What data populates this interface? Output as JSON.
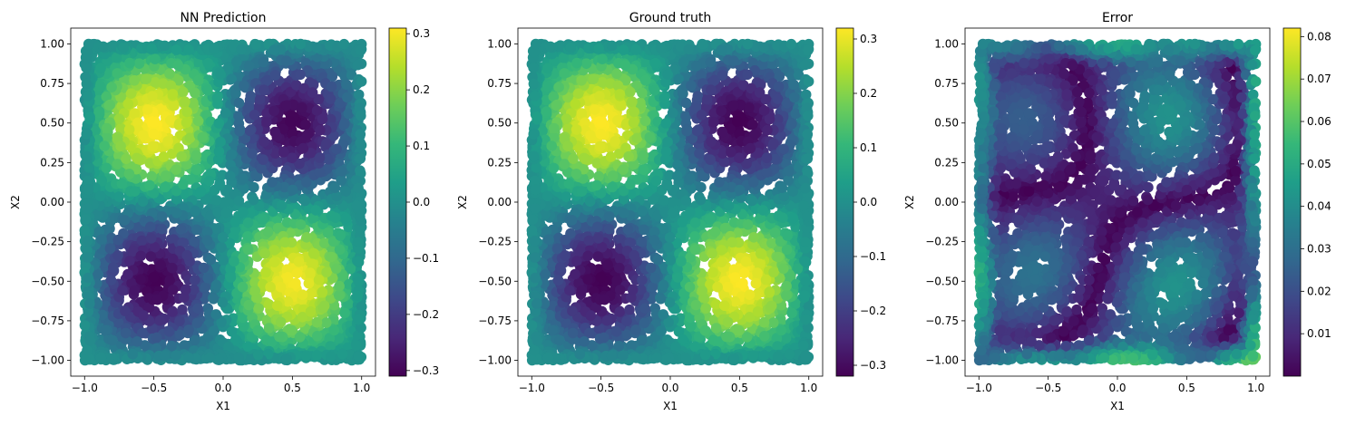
{
  "figure": {
    "background": "#ffffff"
  },
  "colormap": {
    "name": "viridis",
    "stops": [
      "#440154",
      "#482878",
      "#3e4989",
      "#31688e",
      "#26828e",
      "#1f9e89",
      "#35b779",
      "#6ece58",
      "#b5de2b",
      "#fde725"
    ]
  },
  "chart_data": [
    {
      "type": "scatter",
      "title": "NN Prediction",
      "xlabel": "X1",
      "ylabel": "X2",
      "xlim": [
        -1.1,
        1.1
      ],
      "ylim": [
        -1.1,
        1.1
      ],
      "xticks": [
        -1.0,
        -0.5,
        0.0,
        0.5,
        1.0
      ],
      "xtick_labels": [
        "−1.0",
        "−0.5",
        "0.0",
        "0.5",
        "1.0"
      ],
      "yticks": [
        -1.0,
        -0.75,
        -0.5,
        -0.25,
        0.0,
        0.25,
        0.5,
        0.75,
        1.0
      ],
      "ytick_labels": [
        "−1.00",
        "−0.75",
        "−0.50",
        "−0.25",
        "0.00",
        "0.25",
        "0.50",
        "0.75",
        "1.00"
      ],
      "color_field": "f(X1,X2) ≈ 0.31·sin(πX1+π)·sin(πX2) (peaks at (−0.5,0.5) and (0.5,−0.5))",
      "colorbar": {
        "range": [
          -0.31,
          0.31
        ],
        "ticks": [
          -0.3,
          -0.2,
          -0.1,
          0.0,
          0.1,
          0.2,
          0.3
        ],
        "tick_labels": [
          "−0.3",
          "−0.2",
          "−0.1",
          "0.0",
          "0.1",
          "0.2",
          "0.3"
        ]
      },
      "grid": false
    },
    {
      "type": "scatter",
      "title": "Ground truth",
      "xlabel": "X1",
      "ylabel": "X2",
      "xlim": [
        -1.1,
        1.1
      ],
      "ylim": [
        -1.1,
        1.1
      ],
      "xticks": [
        -1.0,
        -0.5,
        0.0,
        0.5,
        1.0
      ],
      "xtick_labels": [
        "−1.0",
        "−0.5",
        "0.0",
        "0.5",
        "1.0"
      ],
      "yticks": [
        -1.0,
        -0.75,
        -0.5,
        -0.25,
        0.0,
        0.25,
        0.5,
        0.75,
        1.0
      ],
      "ytick_labels": [
        "−1.00",
        "−0.75",
        "−0.50",
        "−0.25",
        "0.00",
        "0.25",
        "0.50",
        "0.75",
        "1.00"
      ],
      "color_field": "f(X1,X2) ≈ 0.32·sin(πX1+π)·sin(πX2) (peaks at (−0.5,0.5) and (0.5,−0.5))",
      "colorbar": {
        "range": [
          -0.32,
          0.32
        ],
        "ticks": [
          -0.3,
          -0.2,
          -0.1,
          0.0,
          0.1,
          0.2,
          0.3
        ],
        "tick_labels": [
          "−0.3",
          "−0.2",
          "−0.1",
          "0.0",
          "0.1",
          "0.2",
          "0.3"
        ]
      },
      "grid": false
    },
    {
      "type": "scatter",
      "title": "Error",
      "xlabel": "X1",
      "ylabel": "X2",
      "xlim": [
        -1.1,
        1.1
      ],
      "ylim": [
        -1.1,
        1.1
      ],
      "xticks": [
        -1.0,
        -0.5,
        0.0,
        0.5,
        1.0
      ],
      "xtick_labels": [
        "−1.0",
        "−0.5",
        "0.0",
        "0.5",
        "1.0"
      ],
      "yticks": [
        -1.0,
        -0.75,
        -0.5,
        -0.25,
        0.0,
        0.25,
        0.5,
        0.75,
        1.0
      ],
      "ytick_labels": [
        "−1.00",
        "−0.75",
        "−0.50",
        "−0.25",
        "0.00",
        "0.25",
        "0.50",
        "0.75",
        "1.00"
      ],
      "color_field": "absolute error |prediction − ground truth|, ~0 along curved bands, up to ~0.08 near bottom/left/right edges",
      "colorbar": {
        "range": [
          0.0,
          0.082
        ],
        "ticks": [
          0.01,
          0.02,
          0.03,
          0.04,
          0.05,
          0.06,
          0.07,
          0.08
        ],
        "tick_labels": [
          "0.01",
          "0.02",
          "0.03",
          "0.04",
          "0.05",
          "0.06",
          "0.07",
          "0.08"
        ]
      },
      "grid": false
    }
  ]
}
